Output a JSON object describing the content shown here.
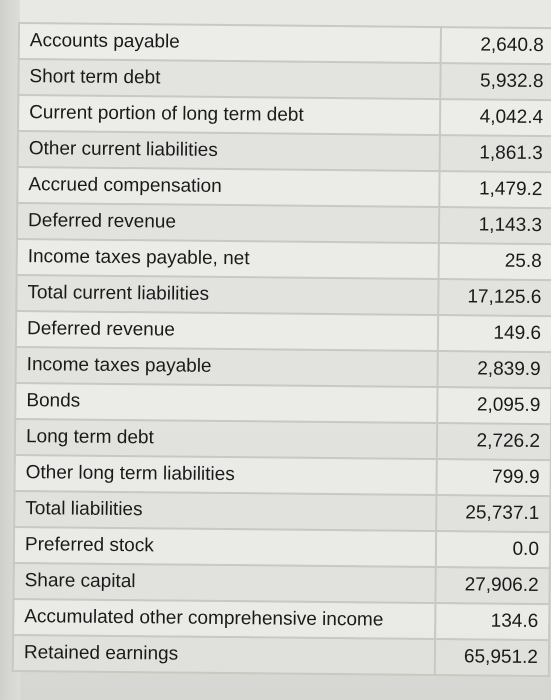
{
  "rows": [
    {
      "label": "Accounts payable",
      "value": "2,640.8"
    },
    {
      "label": "Short term debt",
      "value": "5,932.8"
    },
    {
      "label": "Current portion of long term debt",
      "value": "4,042.4"
    },
    {
      "label": "Other current liabilities",
      "value": "1,861.3"
    },
    {
      "label": "Accrued compensation",
      "value": "1,479.2"
    },
    {
      "label": "Deferred revenue",
      "value": "1,143.3"
    },
    {
      "label": "Income taxes payable, net",
      "value": "25.8"
    },
    {
      "label": "Total current liabilities",
      "value": "17,125.6"
    },
    {
      "label": "Deferred revenue",
      "value": "149.6"
    },
    {
      "label": "Income taxes payable",
      "value": "2,839.9"
    },
    {
      "label": "Bonds",
      "value": "2,095.9"
    },
    {
      "label": "Long term debt",
      "value": "2,726.2"
    },
    {
      "label": "Other long term liabilities",
      "value": "799.9"
    },
    {
      "label": "Total liabilities",
      "value": "25,737.1"
    },
    {
      "label": "Preferred stock",
      "value": "0.0"
    },
    {
      "label": "Share capital",
      "value": "27,906.2"
    },
    {
      "label": "Accumulated other comprehensive income",
      "value": "134.6"
    },
    {
      "label": "Retained earnings",
      "value": "65,951.2"
    }
  ]
}
